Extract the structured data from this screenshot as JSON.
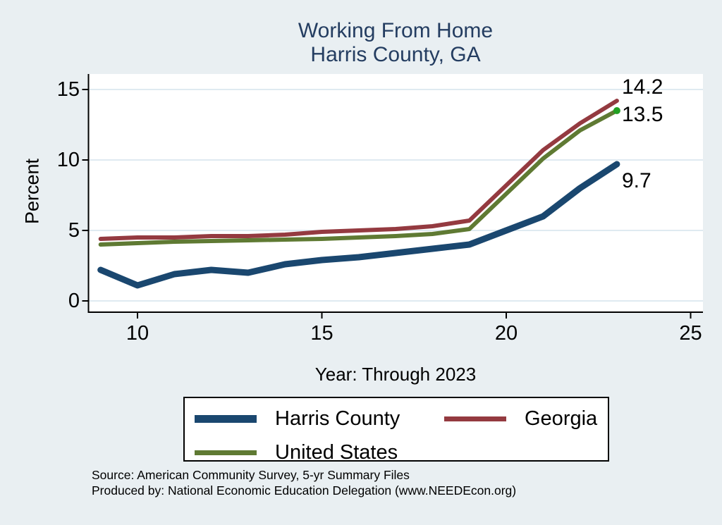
{
  "title": {
    "line1": "Working From Home",
    "line2": "Harris County, GA"
  },
  "y_axis": {
    "label": "Percent",
    "ticks": [
      0,
      5,
      10,
      15
    ]
  },
  "x_axis": {
    "label": "Year: Through 2023",
    "ticks": [
      10,
      15,
      20,
      25
    ]
  },
  "legend": {
    "entries": [
      {
        "label": "Harris County",
        "color": "#1a476f",
        "swatch_thickness": 11
      },
      {
        "label": "Georgia",
        "color": "#943a40",
        "swatch_thickness": 7
      },
      {
        "label": "United States",
        "color": "#5f7a33",
        "swatch_thickness": 7
      }
    ]
  },
  "source": {
    "line1": "Source: American Community Survey, 5-yr Summary Files",
    "line2": "Produced by: National Economic Education Delegation (www.NEEDEcon.org)"
  },
  "colors": {
    "background": "#e9eff2",
    "plot_background": "#ffffff",
    "gridline": "#dfeaf1",
    "axis": "#000000",
    "title_text": "#243d61",
    "us_end_marker": "#22a022"
  },
  "chart_data": {
    "type": "line",
    "title": "Working From Home — Harris County, GA",
    "xlabel": "Year: Through 2023",
    "ylabel": "Percent",
    "x": [
      9,
      10,
      11,
      12,
      13,
      14,
      15,
      16,
      17,
      18,
      19,
      20,
      21,
      22,
      23
    ],
    "x_note": "years 2009–2023 shown as 2-digit year on axis",
    "xlim": [
      8.6,
      25.3
    ],
    "ylim": [
      -0.8,
      16.9
    ],
    "grid": "horizontal",
    "legend_position": "bottom",
    "series": [
      {
        "name": "Harris County",
        "color": "#1a476f",
        "line_width": 9,
        "end_label": "9.7",
        "values": [
          2.2,
          1.1,
          1.9,
          2.2,
          2.0,
          2.6,
          2.9,
          3.1,
          3.4,
          3.7,
          4.0,
          5.0,
          6.0,
          8.0,
          9.7
        ]
      },
      {
        "name": "Georgia",
        "color": "#943a40",
        "line_width": 6,
        "end_label": "14.2",
        "values": [
          4.4,
          4.5,
          4.5,
          4.6,
          4.6,
          4.7,
          4.9,
          5.0,
          5.1,
          5.3,
          5.7,
          8.2,
          10.7,
          12.6,
          14.2
        ]
      },
      {
        "name": "United States",
        "color": "#5f7a33",
        "line_width": 6,
        "end_label": "13.5",
        "end_marker": true,
        "values": [
          4.0,
          4.1,
          4.2,
          4.25,
          4.3,
          4.35,
          4.4,
          4.5,
          4.6,
          4.75,
          5.1,
          7.6,
          10.1,
          12.1,
          13.5
        ]
      }
    ]
  }
}
